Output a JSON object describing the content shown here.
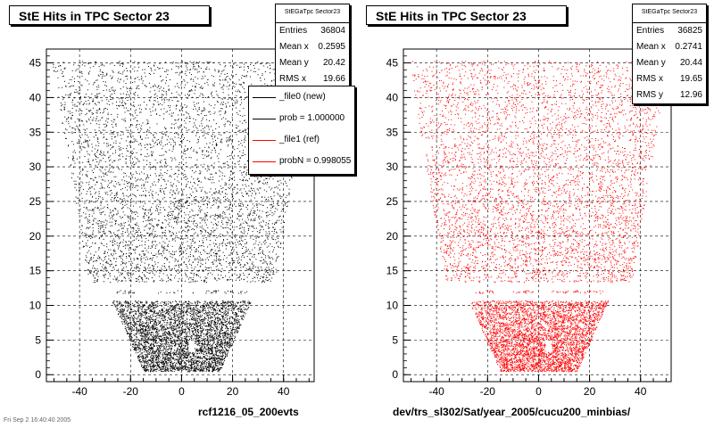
{
  "chart_data": [
    {
      "type": "scatter",
      "title": "StE Hits in TPC Sector 23",
      "xlabel": "rcf1216_05_200evts",
      "ylabel": "",
      "xlim": [
        -53,
        52
      ],
      "ylim": [
        -1,
        47
      ],
      "xticks": [
        -40,
        -20,
        0,
        20,
        40
      ],
      "yticks": [
        0,
        5,
        10,
        15,
        20,
        25,
        30,
        35,
        40,
        45
      ],
      "grid": true,
      "marker_color": "#000000",
      "stats": {
        "name": "StEGaTpc Sector23",
        "rows": [
          {
            "label": "Entries",
            "value": "36804"
          },
          {
            "label": "Mean x",
            "value": "0.2595"
          },
          {
            "label": "Mean y",
            "value": "20.42"
          },
          {
            "label": "RMS x",
            "value": "19.66"
          }
        ]
      },
      "legend": [
        {
          "label": "_file0 (new)",
          "color": "#000000"
        },
        {
          "label": "prob = 1.000000",
          "color": "#000000"
        },
        {
          "label": "_file1 (ref)",
          "color": "#ff0000"
        },
        {
          "label": "probN = 0.998055",
          "color": "#ff0000"
        }
      ],
      "legend_position": "top-right"
    },
    {
      "type": "scatter",
      "title": "StE Hits in TPC Sector 23",
      "xlabel": "dev/trs_sl302/Sat/year_2005/cucu200_minbias/",
      "ylabel": "",
      "xlim": [
        -53,
        52
      ],
      "ylim": [
        -1,
        47
      ],
      "xticks": [
        -40,
        -20,
        0,
        20,
        40
      ],
      "yticks": [
        0,
        5,
        10,
        15,
        20,
        25,
        30,
        35,
        40,
        45
      ],
      "grid": true,
      "marker_color": "#ff0000",
      "stats": {
        "name": "StEGaTpc Sector23",
        "rows": [
          {
            "label": "Entries",
            "value": "36825"
          },
          {
            "label": "Mean x",
            "value": "0.2741"
          },
          {
            "label": "Mean y",
            "value": "20.44"
          },
          {
            "label": "RMS x",
            "value": "19.65"
          },
          {
            "label": "RMS y",
            "value": "12.96"
          }
        ]
      }
    }
  ],
  "footer_text": "Fri Sep 2 16:40:40 2005"
}
